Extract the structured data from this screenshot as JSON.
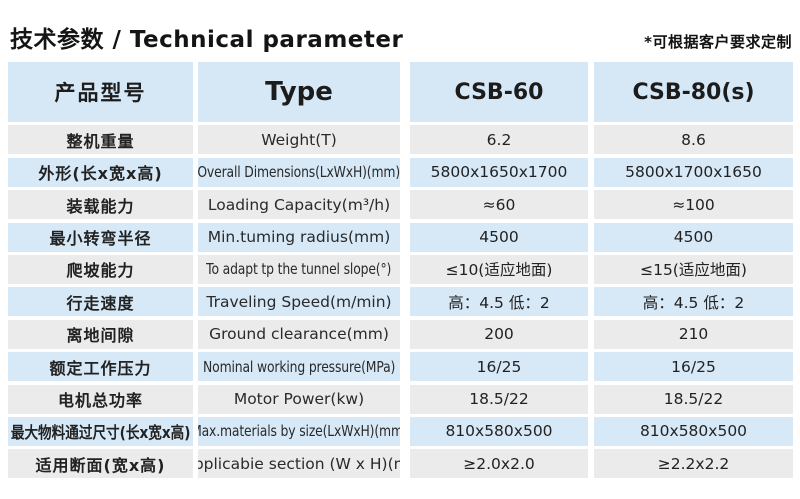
{
  "page": {
    "title_zh": "技术参数",
    "title_sep": " / ",
    "title_en": "Technical parameter",
    "note": "*可根据客户要求定制"
  },
  "table": {
    "header": {
      "col_param_zh": "产品型号",
      "col_param_en": "Type",
      "col_model_1": "CSB-60",
      "col_model_2": "CSB-80(s)"
    },
    "colors": {
      "header_bg": "#d6e8f6",
      "row_blue_bg": "#d7e9f7",
      "row_gray_bg": "#ebebeb",
      "text": "#222222"
    },
    "rows": [
      {
        "zh": "整机重量",
        "en": "Weight(T)",
        "v1": "6.2",
        "v2": "8.6",
        "cond_en": false,
        "cond_zh": false
      },
      {
        "zh": "外形(长x宽x高)",
        "en": "Overall Dimensions(LxWxH)(mm)",
        "v1": "5800x1650x1700",
        "v2": "5800x1700x1650",
        "cond_en": true,
        "cond_zh": false
      },
      {
        "zh": "装载能力",
        "en": "Loading Capacity(m³/h)",
        "v1": "≈60",
        "v2": "≈100",
        "cond_en": false,
        "cond_zh": false
      },
      {
        "zh": "最小转弯半径",
        "en": "Min.tuming radius(mm)",
        "v1": "4500",
        "v2": "4500",
        "cond_en": false,
        "cond_zh": false
      },
      {
        "zh": "爬坡能力",
        "en": "To adapt tp the tunnel slope(°)",
        "v1": "≤10(适应地面)",
        "v2": "≤15(适应地面)",
        "cond_en": true,
        "cond_zh": false
      },
      {
        "zh": "行走速度",
        "en": "Traveling Speed(m/min)",
        "v1": "高：4.5 低：2",
        "v2": "高：4.5 低：2",
        "cond_en": false,
        "cond_zh": false
      },
      {
        "zh": "离地间隙",
        "en": "Ground clearance(mm)",
        "v1": "200",
        "v2": "210",
        "cond_en": false,
        "cond_zh": false
      },
      {
        "zh": "额定工作压力",
        "en": "Nominal working pressure(MPa)",
        "v1": "16/25",
        "v2": "16/25",
        "cond_en": true,
        "cond_zh": false
      },
      {
        "zh": "电机总功率",
        "en": "Motor Power(kw)",
        "v1": "18.5/22",
        "v2": "18.5/22",
        "cond_en": false,
        "cond_zh": false
      },
      {
        "zh": "最大物料通过尺寸(长x宽x高)",
        "en": "Max.materials by size(LxWxH)(mm)",
        "v1": "810x580x500",
        "v2": "810x580x500",
        "cond_en": true,
        "cond_zh": true
      },
      {
        "zh": "适用断面(宽x高)",
        "en": "Applicabie section (W x H)(m)",
        "v1": "≥2.0x2.0",
        "v2": "≥2.2x2.2",
        "cond_en": false,
        "cond_zh": false
      }
    ]
  }
}
